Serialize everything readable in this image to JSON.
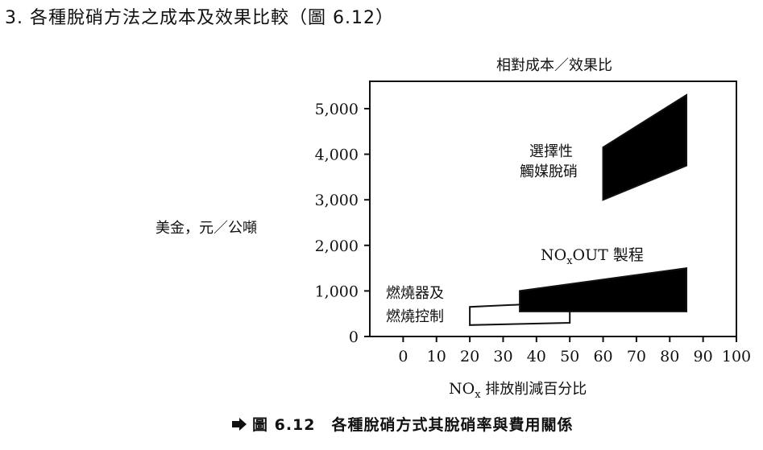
{
  "heading": "3. 各種脫硝方法之成本及效果比較（圖 6.12）",
  "caption": {
    "arrow_icon": "right-arrow-icon",
    "text": "圖 6.12　各種脫硝方式其脫硝率與費用關係"
  },
  "chart_data": {
    "type": "area",
    "title": "相對成本／效果比",
    "xlabel": "NOx 排放削減百分比",
    "ylabel": "美金，元／公噸",
    "xlim": [
      -10,
      100
    ],
    "ylim": [
      0,
      5600
    ],
    "x_ticks": [
      "0",
      "10",
      "20",
      "30",
      "40",
      "50",
      "60",
      "70",
      "80",
      "90",
      "100"
    ],
    "y_ticks": [
      "0",
      "1,000",
      "2,000",
      "3,000",
      "4,000",
      "5,000"
    ],
    "grid": false,
    "series": [
      {
        "name": "燃燒器及燃燒控制",
        "label_lines": [
          "燃燒器及",
          "燃燒控制"
        ],
        "fill": "#ffffff",
        "polygon": [
          [
            20,
            250
          ],
          [
            20,
            650
          ],
          [
            35,
            700
          ],
          [
            50,
            700
          ],
          [
            50,
            300
          ]
        ]
      },
      {
        "name": "NOxOUT 製程",
        "label_text": "NO",
        "label_sub": "x",
        "label_rest": "OUT 製程",
        "fill": "#000000",
        "polygon": [
          [
            35,
            550
          ],
          [
            35,
            1000
          ],
          [
            85,
            1500
          ],
          [
            85,
            550
          ]
        ]
      },
      {
        "name": "選擇性觸媒脫硝",
        "label_lines": [
          "選擇性",
          "觸媒脫硝"
        ],
        "fill": "#000000",
        "polygon": [
          [
            60,
            3000
          ],
          [
            60,
            4150
          ],
          [
            85,
            5300
          ],
          [
            85,
            3750
          ]
        ]
      }
    ]
  }
}
